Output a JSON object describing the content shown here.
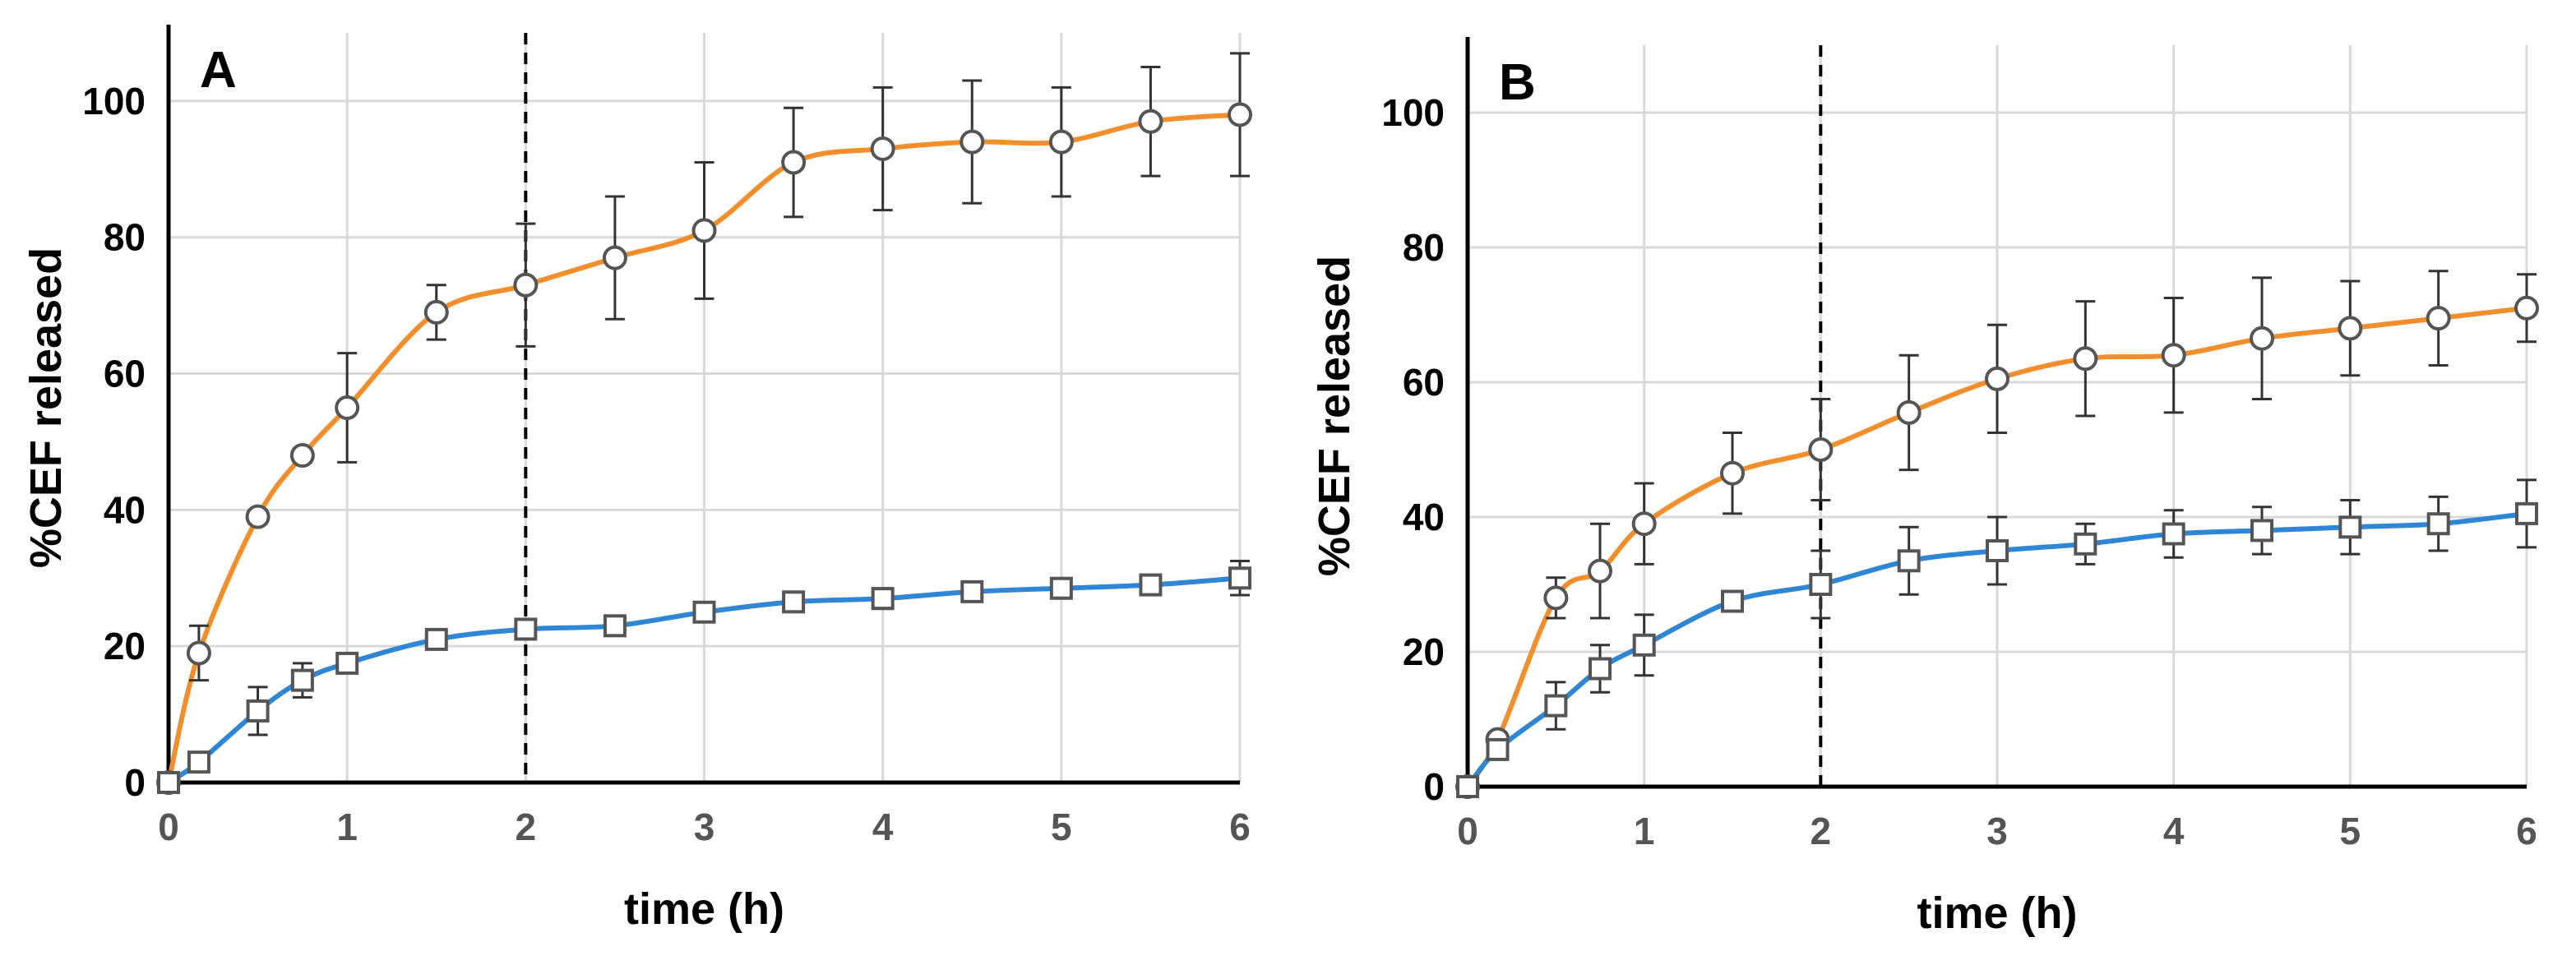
{
  "chart_data": [
    {
      "type": "line",
      "panel_label": "A",
      "xlabel": "time (h)",
      "ylabel": "%CEF released",
      "xlim": [
        0,
        6
      ],
      "ylim": [
        0,
        110
      ],
      "xticks": [
        0,
        1,
        2,
        3,
        4,
        5,
        6
      ],
      "yticks": [
        0,
        20,
        40,
        60,
        80,
        100
      ],
      "vline_x": 2,
      "grid": true,
      "series": [
        {
          "name": "circles",
          "marker": "circle",
          "color": "#F28E2B",
          "x": [
            0,
            0.17,
            0.5,
            0.75,
            1,
            1.5,
            2,
            2.5,
            3,
            3.5,
            4,
            4.5,
            5,
            5.5,
            6
          ],
          "y": [
            0,
            19,
            39,
            48,
            55,
            69,
            73,
            77,
            81,
            91,
            93,
            94,
            94,
            97,
            98
          ],
          "err": [
            0,
            4,
            1,
            1,
            8,
            4,
            9,
            9,
            10,
            8,
            9,
            9,
            8,
            8,
            9
          ]
        },
        {
          "name": "squares",
          "marker": "square",
          "color": "#2E86D4",
          "x": [
            0,
            0.17,
            0.5,
            0.75,
            1,
            1.5,
            2,
            2.5,
            3,
            3.5,
            4,
            4.5,
            5,
            5.5,
            6
          ],
          "y": [
            0,
            3,
            10.5,
            15,
            17.5,
            21,
            22.5,
            23,
            25,
            26.5,
            27,
            28,
            28.5,
            29,
            30
          ],
          "err": [
            0,
            0.5,
            3.5,
            2.5,
            1,
            1,
            1,
            1,
            1,
            1,
            1.5,
            1,
            1,
            1,
            2.5
          ]
        }
      ]
    },
    {
      "type": "line",
      "panel_label": "B",
      "xlabel": "time (h)",
      "ylabel": "%CEF released",
      "xlim": [
        0,
        6
      ],
      "ylim": [
        0,
        110
      ],
      "xticks": [
        0,
        1,
        2,
        3,
        4,
        5,
        6
      ],
      "yticks": [
        0,
        20,
        40,
        60,
        80,
        100
      ],
      "vline_x": 2,
      "grid": true,
      "series": [
        {
          "name": "circles",
          "marker": "circle",
          "color": "#F28E2B",
          "x": [
            0,
            0.17,
            0.5,
            0.75,
            1,
            1.5,
            2,
            2.5,
            3,
            3.5,
            4,
            4.5,
            5,
            5.5,
            6
          ],
          "y": [
            0,
            7,
            28,
            32,
            39,
            46.5,
            50,
            55.5,
            60.5,
            63.5,
            64,
            66.5,
            68,
            69.5,
            71
          ],
          "err": [
            0,
            1,
            3,
            7,
            6,
            6,
            7.5,
            8.5,
            8,
            8.5,
            8.5,
            9,
            7,
            7,
            5
          ]
        },
        {
          "name": "squares",
          "marker": "square",
          "color": "#2E86D4",
          "x": [
            0,
            0.17,
            0.5,
            0.75,
            1,
            1.5,
            2,
            2.5,
            3,
            3.5,
            4,
            4.5,
            5,
            5.5,
            6
          ],
          "y": [
            0,
            5.5,
            12,
            17.5,
            21,
            27.5,
            30,
            33.5,
            35,
            36,
            37.5,
            38,
            38.5,
            39,
            40.5
          ],
          "err": [
            0,
            1,
            3.5,
            3.5,
            4.5,
            1.5,
            5,
            5,
            5,
            3,
            3.5,
            3.5,
            4,
            4,
            5
          ]
        }
      ]
    }
  ]
}
